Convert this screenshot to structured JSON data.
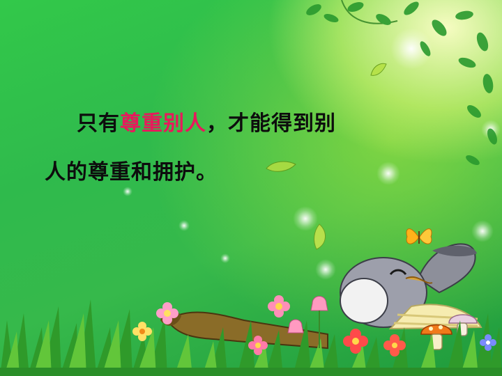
{
  "slide": {
    "line1": {
      "prefix": "只有",
      "highlight": "尊重别人",
      "suffix": "，才能得到别"
    },
    "line2": {
      "text": "人的尊重和拥护。"
    }
  },
  "colors": {
    "background": "#32c84a",
    "text": "#0d0d0d",
    "highlight": "#e8195c"
  },
  "decorations": [
    "vine-leaves",
    "falling-leaf",
    "butterfly",
    "sleeping-donkey",
    "mushroom",
    "flowers",
    "grass"
  ]
}
